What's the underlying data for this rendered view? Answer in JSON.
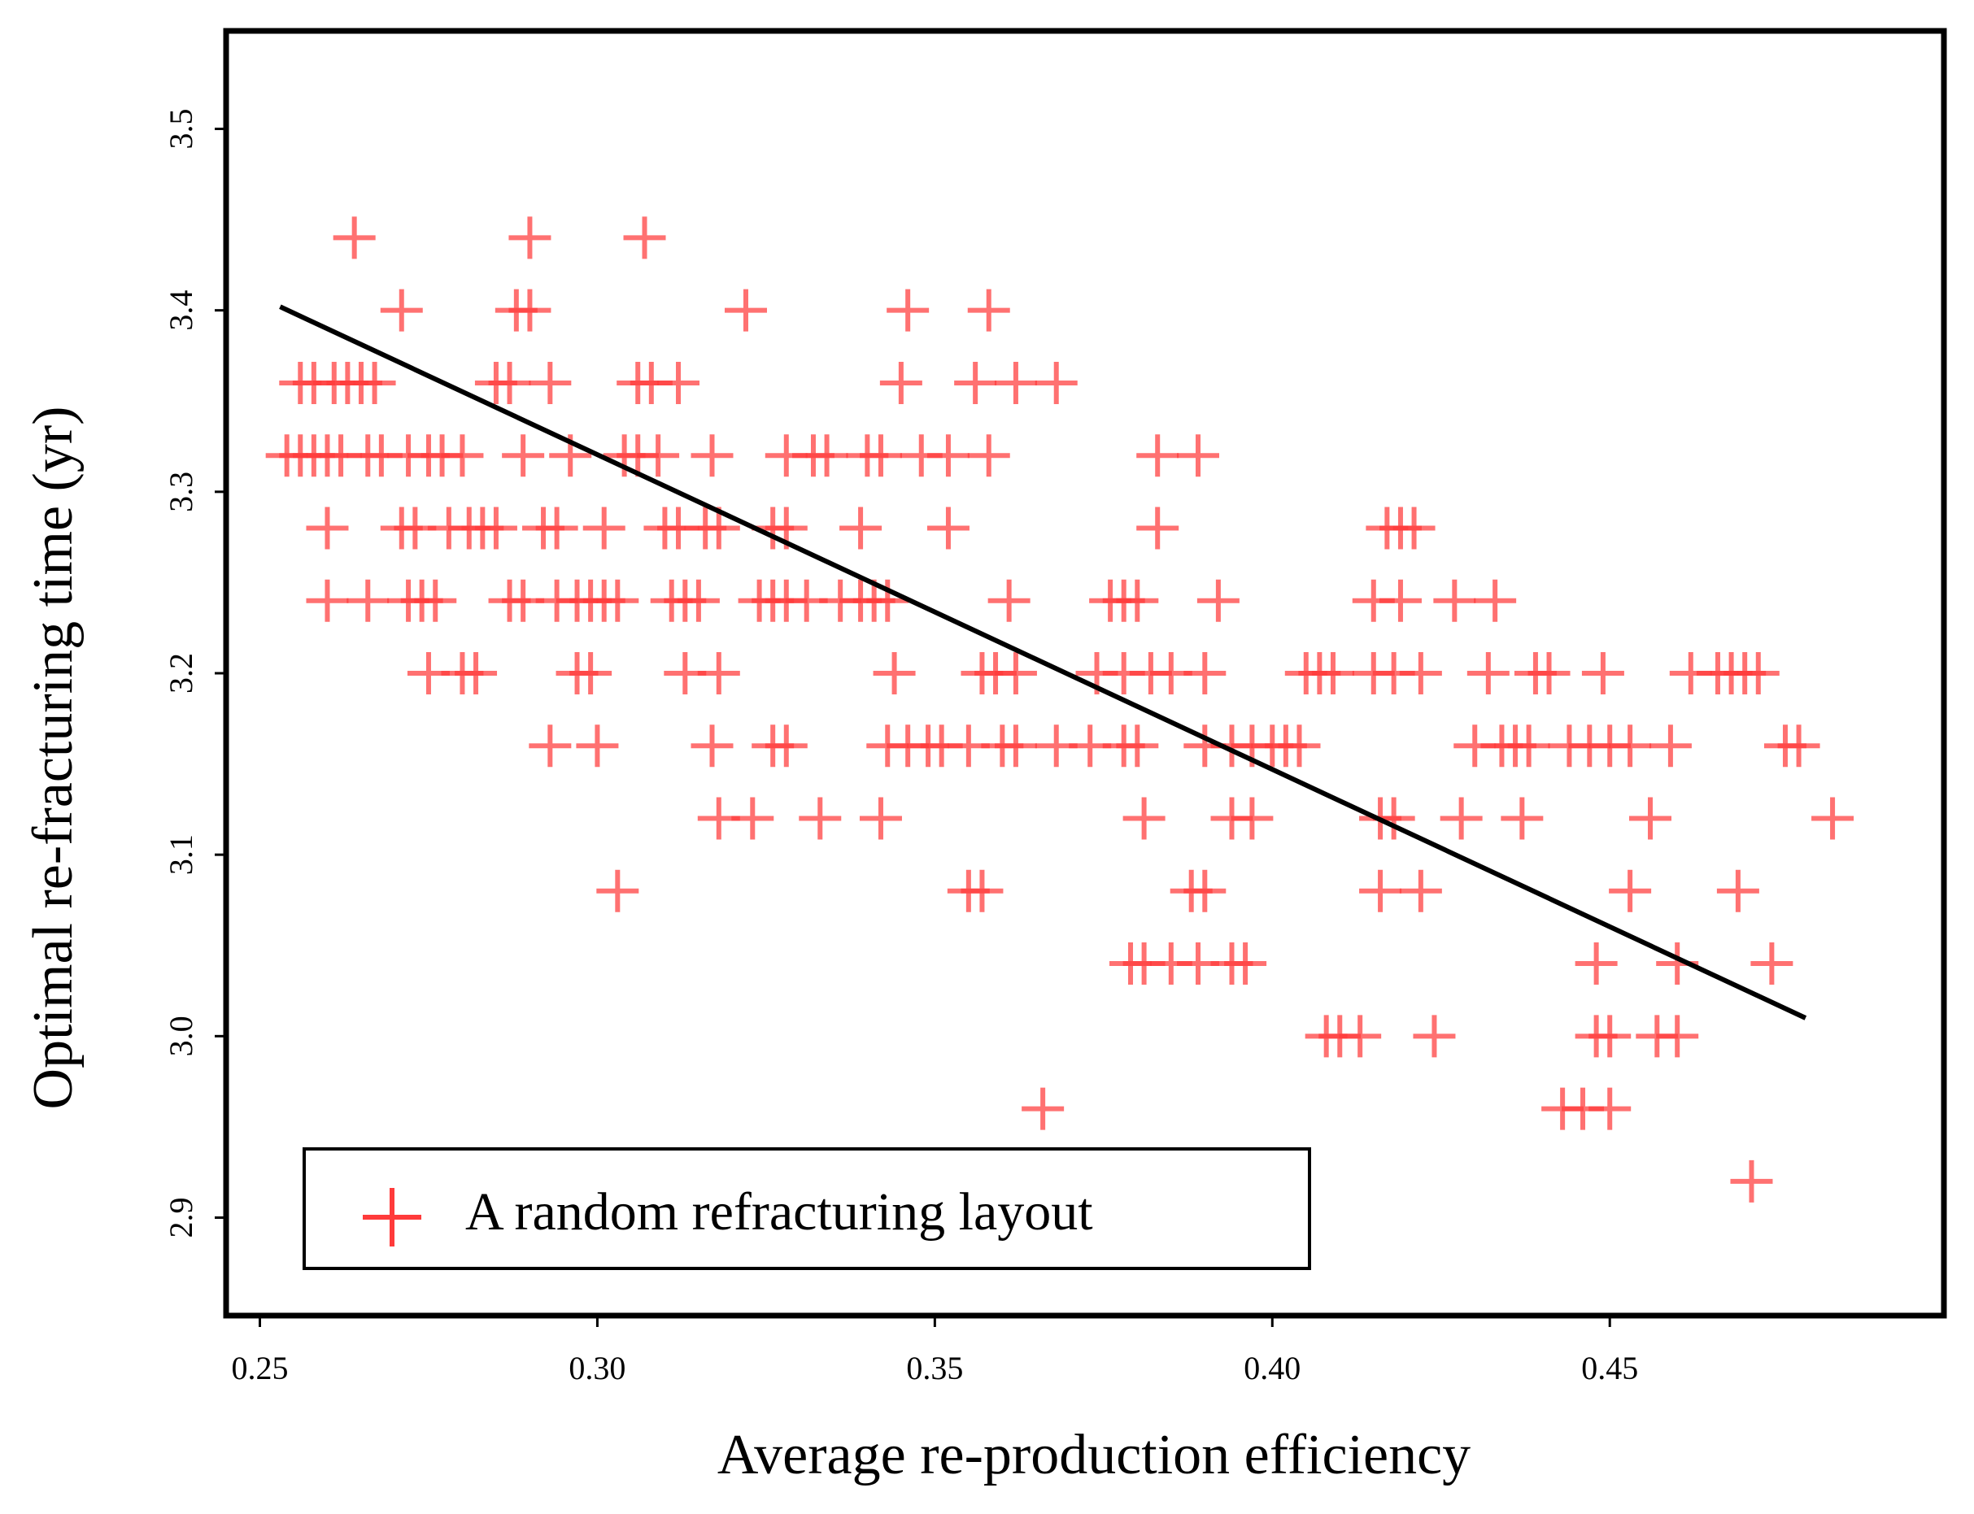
{
  "chart_data": {
    "type": "scatter",
    "title": "",
    "xlabel": "Average re-production efficiency",
    "ylabel": "Optimal re-fracturing time (yr)",
    "xlim": [
      0.245,
      0.4995
    ],
    "ylim": [
      2.846,
      3.554
    ],
    "xticks": [
      "0.25",
      "0.30",
      "0.35",
      "0.40",
      "0.45"
    ],
    "xtick_values": [
      0.25,
      0.3,
      0.35,
      0.4,
      0.45
    ],
    "yticks": [
      "2.9",
      "3.0",
      "3.1",
      "3.2",
      "3.3",
      "3.4",
      "3.5"
    ],
    "ytick_values": [
      2.9,
      3.0,
      3.1,
      3.2,
      3.3,
      3.4,
      3.5
    ],
    "grid": false,
    "legend": {
      "position": "bottom-left",
      "label": "A random refracturing layout"
    },
    "marker_color": "#ff3b3b",
    "trend_color": "#000000",
    "trendline": {
      "x": [
        0.253,
        0.479
      ],
      "y": [
        3.402,
        3.01
      ]
    },
    "series": [
      {
        "name": "A random refracturing layout",
        "marker": "plus",
        "points": [
          [
            0.264,
            3.44
          ],
          [
            0.29,
            3.44
          ],
          [
            0.307,
            3.44
          ],
          [
            0.271,
            3.4
          ],
          [
            0.288,
            3.4
          ],
          [
            0.29,
            3.4
          ],
          [
            0.322,
            3.4
          ],
          [
            0.346,
            3.4
          ],
          [
            0.358,
            3.4
          ],
          [
            0.256,
            3.36
          ],
          [
            0.258,
            3.36
          ],
          [
            0.261,
            3.36
          ],
          [
            0.263,
            3.36
          ],
          [
            0.265,
            3.36
          ],
          [
            0.267,
            3.36
          ],
          [
            0.285,
            3.36
          ],
          [
            0.287,
            3.36
          ],
          [
            0.293,
            3.36
          ],
          [
            0.306,
            3.36
          ],
          [
            0.308,
            3.36
          ],
          [
            0.312,
            3.36
          ],
          [
            0.345,
            3.36
          ],
          [
            0.356,
            3.36
          ],
          [
            0.362,
            3.36
          ],
          [
            0.368,
            3.36
          ],
          [
            0.254,
            3.32
          ],
          [
            0.256,
            3.32
          ],
          [
            0.258,
            3.32
          ],
          [
            0.26,
            3.32
          ],
          [
            0.262,
            3.32
          ],
          [
            0.266,
            3.32
          ],
          [
            0.268,
            3.32
          ],
          [
            0.272,
            3.32
          ],
          [
            0.275,
            3.32
          ],
          [
            0.277,
            3.32
          ],
          [
            0.28,
            3.32
          ],
          [
            0.289,
            3.32
          ],
          [
            0.296,
            3.32
          ],
          [
            0.304,
            3.32
          ],
          [
            0.306,
            3.32
          ],
          [
            0.309,
            3.32
          ],
          [
            0.317,
            3.32
          ],
          [
            0.328,
            3.32
          ],
          [
            0.332,
            3.32
          ],
          [
            0.334,
            3.32
          ],
          [
            0.34,
            3.32
          ],
          [
            0.342,
            3.32
          ],
          [
            0.348,
            3.32
          ],
          [
            0.352,
            3.32
          ],
          [
            0.358,
            3.32
          ],
          [
            0.383,
            3.32
          ],
          [
            0.389,
            3.32
          ],
          [
            0.26,
            3.28
          ],
          [
            0.271,
            3.28
          ],
          [
            0.273,
            3.28
          ],
          [
            0.278,
            3.28
          ],
          [
            0.281,
            3.28
          ],
          [
            0.283,
            3.28
          ],
          [
            0.285,
            3.28
          ],
          [
            0.292,
            3.28
          ],
          [
            0.294,
            3.28
          ],
          [
            0.301,
            3.28
          ],
          [
            0.31,
            3.28
          ],
          [
            0.312,
            3.28
          ],
          [
            0.316,
            3.28
          ],
          [
            0.318,
            3.28
          ],
          [
            0.326,
            3.28
          ],
          [
            0.328,
            3.28
          ],
          [
            0.339,
            3.28
          ],
          [
            0.352,
            3.28
          ],
          [
            0.383,
            3.28
          ],
          [
            0.417,
            3.28
          ],
          [
            0.419,
            3.28
          ],
          [
            0.421,
            3.28
          ],
          [
            0.26,
            3.24
          ],
          [
            0.266,
            3.24
          ],
          [
            0.272,
            3.24
          ],
          [
            0.274,
            3.24
          ],
          [
            0.276,
            3.24
          ],
          [
            0.287,
            3.24
          ],
          [
            0.289,
            3.24
          ],
          [
            0.294,
            3.24
          ],
          [
            0.297,
            3.24
          ],
          [
            0.299,
            3.24
          ],
          [
            0.301,
            3.24
          ],
          [
            0.303,
            3.24
          ],
          [
            0.311,
            3.24
          ],
          [
            0.313,
            3.24
          ],
          [
            0.315,
            3.24
          ],
          [
            0.324,
            3.24
          ],
          [
            0.326,
            3.24
          ],
          [
            0.328,
            3.24
          ],
          [
            0.331,
            3.24
          ],
          [
            0.336,
            3.24
          ],
          [
            0.339,
            3.24
          ],
          [
            0.341,
            3.24
          ],
          [
            0.343,
            3.24
          ],
          [
            0.361,
            3.24
          ],
          [
            0.376,
            3.24
          ],
          [
            0.378,
            3.24
          ],
          [
            0.38,
            3.24
          ],
          [
            0.392,
            3.24
          ],
          [
            0.415,
            3.24
          ],
          [
            0.419,
            3.24
          ],
          [
            0.427,
            3.24
          ],
          [
            0.433,
            3.24
          ],
          [
            0.275,
            3.2
          ],
          [
            0.28,
            3.2
          ],
          [
            0.282,
            3.2
          ],
          [
            0.297,
            3.2
          ],
          [
            0.299,
            3.2
          ],
          [
            0.313,
            3.2
          ],
          [
            0.318,
            3.2
          ],
          [
            0.344,
            3.2
          ],
          [
            0.357,
            3.2
          ],
          [
            0.359,
            3.2
          ],
          [
            0.362,
            3.2
          ],
          [
            0.374,
            3.2
          ],
          [
            0.378,
            3.2
          ],
          [
            0.382,
            3.2
          ],
          [
            0.385,
            3.2
          ],
          [
            0.39,
            3.2
          ],
          [
            0.405,
            3.2
          ],
          [
            0.407,
            3.2
          ],
          [
            0.409,
            3.2
          ],
          [
            0.415,
            3.2
          ],
          [
            0.418,
            3.2
          ],
          [
            0.422,
            3.2
          ],
          [
            0.432,
            3.2
          ],
          [
            0.439,
            3.2
          ],
          [
            0.441,
            3.2
          ],
          [
            0.449,
            3.2
          ],
          [
            0.462,
            3.2
          ],
          [
            0.466,
            3.2
          ],
          [
            0.468,
            3.2
          ],
          [
            0.47,
            3.2
          ],
          [
            0.472,
            3.2
          ],
          [
            0.293,
            3.16
          ],
          [
            0.3,
            3.16
          ],
          [
            0.317,
            3.16
          ],
          [
            0.326,
            3.16
          ],
          [
            0.328,
            3.16
          ],
          [
            0.343,
            3.16
          ],
          [
            0.346,
            3.16
          ],
          [
            0.349,
            3.16
          ],
          [
            0.351,
            3.16
          ],
          [
            0.355,
            3.16
          ],
          [
            0.36,
            3.16
          ],
          [
            0.362,
            3.16
          ],
          [
            0.368,
            3.16
          ],
          [
            0.373,
            3.16
          ],
          [
            0.378,
            3.16
          ],
          [
            0.38,
            3.16
          ],
          [
            0.39,
            3.16
          ],
          [
            0.394,
            3.16
          ],
          [
            0.397,
            3.16
          ],
          [
            0.4,
            3.16
          ],
          [
            0.402,
            3.16
          ],
          [
            0.404,
            3.16
          ],
          [
            0.43,
            3.16
          ],
          [
            0.434,
            3.16
          ],
          [
            0.436,
            3.16
          ],
          [
            0.438,
            3.16
          ],
          [
            0.444,
            3.16
          ],
          [
            0.447,
            3.16
          ],
          [
            0.45,
            3.16
          ],
          [
            0.453,
            3.16
          ],
          [
            0.459,
            3.16
          ],
          [
            0.476,
            3.16
          ],
          [
            0.478,
            3.16
          ],
          [
            0.318,
            3.12
          ],
          [
            0.323,
            3.12
          ],
          [
            0.333,
            3.12
          ],
          [
            0.342,
            3.12
          ],
          [
            0.381,
            3.12
          ],
          [
            0.394,
            3.12
          ],
          [
            0.397,
            3.12
          ],
          [
            0.416,
            3.12
          ],
          [
            0.418,
            3.12
          ],
          [
            0.428,
            3.12
          ],
          [
            0.437,
            3.12
          ],
          [
            0.456,
            3.12
          ],
          [
            0.483,
            3.12
          ],
          [
            0.303,
            3.08
          ],
          [
            0.355,
            3.08
          ],
          [
            0.357,
            3.08
          ],
          [
            0.388,
            3.08
          ],
          [
            0.39,
            3.08
          ],
          [
            0.416,
            3.08
          ],
          [
            0.422,
            3.08
          ],
          [
            0.453,
            3.08
          ],
          [
            0.469,
            3.08
          ],
          [
            0.379,
            3.04
          ],
          [
            0.381,
            3.04
          ],
          [
            0.385,
            3.04
          ],
          [
            0.389,
            3.04
          ],
          [
            0.394,
            3.04
          ],
          [
            0.396,
            3.04
          ],
          [
            0.448,
            3.04
          ],
          [
            0.46,
            3.04
          ],
          [
            0.474,
            3.04
          ],
          [
            0.408,
            3.0
          ],
          [
            0.41,
            3.0
          ],
          [
            0.413,
            3.0
          ],
          [
            0.424,
            3.0
          ],
          [
            0.448,
            3.0
          ],
          [
            0.45,
            3.0
          ],
          [
            0.457,
            3.0
          ],
          [
            0.46,
            3.0
          ],
          [
            0.366,
            2.96
          ],
          [
            0.443,
            2.96
          ],
          [
            0.446,
            2.96
          ],
          [
            0.45,
            2.96
          ],
          [
            0.471,
            2.92
          ]
        ]
      }
    ]
  }
}
